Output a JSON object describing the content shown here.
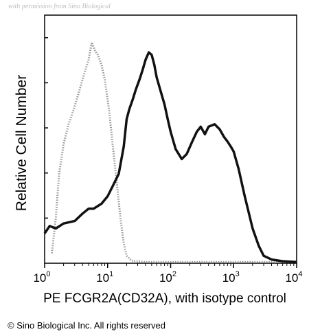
{
  "watermark": "with permission from Sino Biological",
  "copyright": "© Sino Biological Inc. All rights reserved",
  "chart_data": {
    "type": "area",
    "xscale": "log",
    "xlim": [
      1,
      10000
    ],
    "ylim": [
      0,
      100
    ],
    "xlabel": "PE FCGR2A(CD32A), with isotype control",
    "ylabel": "Relative Cell Number",
    "x_ticks": [
      {
        "base": "10",
        "exp": "0",
        "value": 1
      },
      {
        "base": "10",
        "exp": "1",
        "value": 10
      },
      {
        "base": "10",
        "exp": "2",
        "value": 100
      },
      {
        "base": "10",
        "exp": "3",
        "value": 1000
      },
      {
        "base": "10",
        "exp": "4",
        "value": 10000
      }
    ],
    "y_ticks_labeled": false,
    "grid": false,
    "series": [
      {
        "role": "isotype control",
        "color": "#9a9a9a",
        "style": "dotted",
        "points": [
          [
            1.3,
            4
          ],
          [
            1.5,
            18
          ],
          [
            1.7,
            36
          ],
          [
            2.0,
            48
          ],
          [
            2.4,
            56
          ],
          [
            2.9,
            62
          ],
          [
            3.5,
            69
          ],
          [
            4.2,
            76
          ],
          [
            5.0,
            82
          ],
          [
            5.6,
            89
          ],
          [
            6.2,
            86
          ],
          [
            7.0,
            84
          ],
          [
            8.0,
            80
          ],
          [
            9.0,
            74
          ],
          [
            10.5,
            62
          ],
          [
            12,
            48
          ],
          [
            14,
            32
          ],
          [
            16,
            18
          ],
          [
            18,
            8
          ],
          [
            20,
            3
          ],
          [
            24,
            1
          ],
          [
            40,
            0.5
          ],
          [
            10000,
            0.5
          ]
        ]
      },
      {
        "role": "FCGR2A(CD32A)",
        "color": "#111111",
        "style": "solid",
        "points": [
          [
            1.0,
            12
          ],
          [
            1.2,
            15
          ],
          [
            1.5,
            14
          ],
          [
            2.0,
            16
          ],
          [
            3.0,
            17
          ],
          [
            4.0,
            20
          ],
          [
            5.0,
            22
          ],
          [
            6.0,
            22
          ],
          [
            8.0,
            24
          ],
          [
            10,
            27
          ],
          [
            12,
            31
          ],
          [
            15,
            36
          ],
          [
            18,
            47
          ],
          [
            20,
            58
          ],
          [
            22,
            62
          ],
          [
            25,
            66
          ],
          [
            28,
            70
          ],
          [
            32,
            74
          ],
          [
            36,
            78
          ],
          [
            40,
            82
          ],
          [
            45,
            85
          ],
          [
            50,
            84
          ],
          [
            55,
            80
          ],
          [
            60,
            75
          ],
          [
            70,
            69
          ],
          [
            80,
            64
          ],
          [
            90,
            58
          ],
          [
            100,
            53
          ],
          [
            120,
            46
          ],
          [
            150,
            42
          ],
          [
            180,
            44
          ],
          [
            220,
            49
          ],
          [
            260,
            53
          ],
          [
            300,
            55
          ],
          [
            350,
            52
          ],
          [
            400,
            55
          ],
          [
            500,
            56
          ],
          [
            600,
            54
          ],
          [
            700,
            51
          ],
          [
            800,
            49
          ],
          [
            900,
            47
          ],
          [
            1000,
            45
          ],
          [
            1200,
            38
          ],
          [
            1500,
            27
          ],
          [
            2000,
            14
          ],
          [
            2500,
            7
          ],
          [
            3000,
            3
          ],
          [
            4000,
            1.5
          ],
          [
            6000,
            0.8
          ],
          [
            10000,
            0.5
          ]
        ]
      }
    ]
  }
}
